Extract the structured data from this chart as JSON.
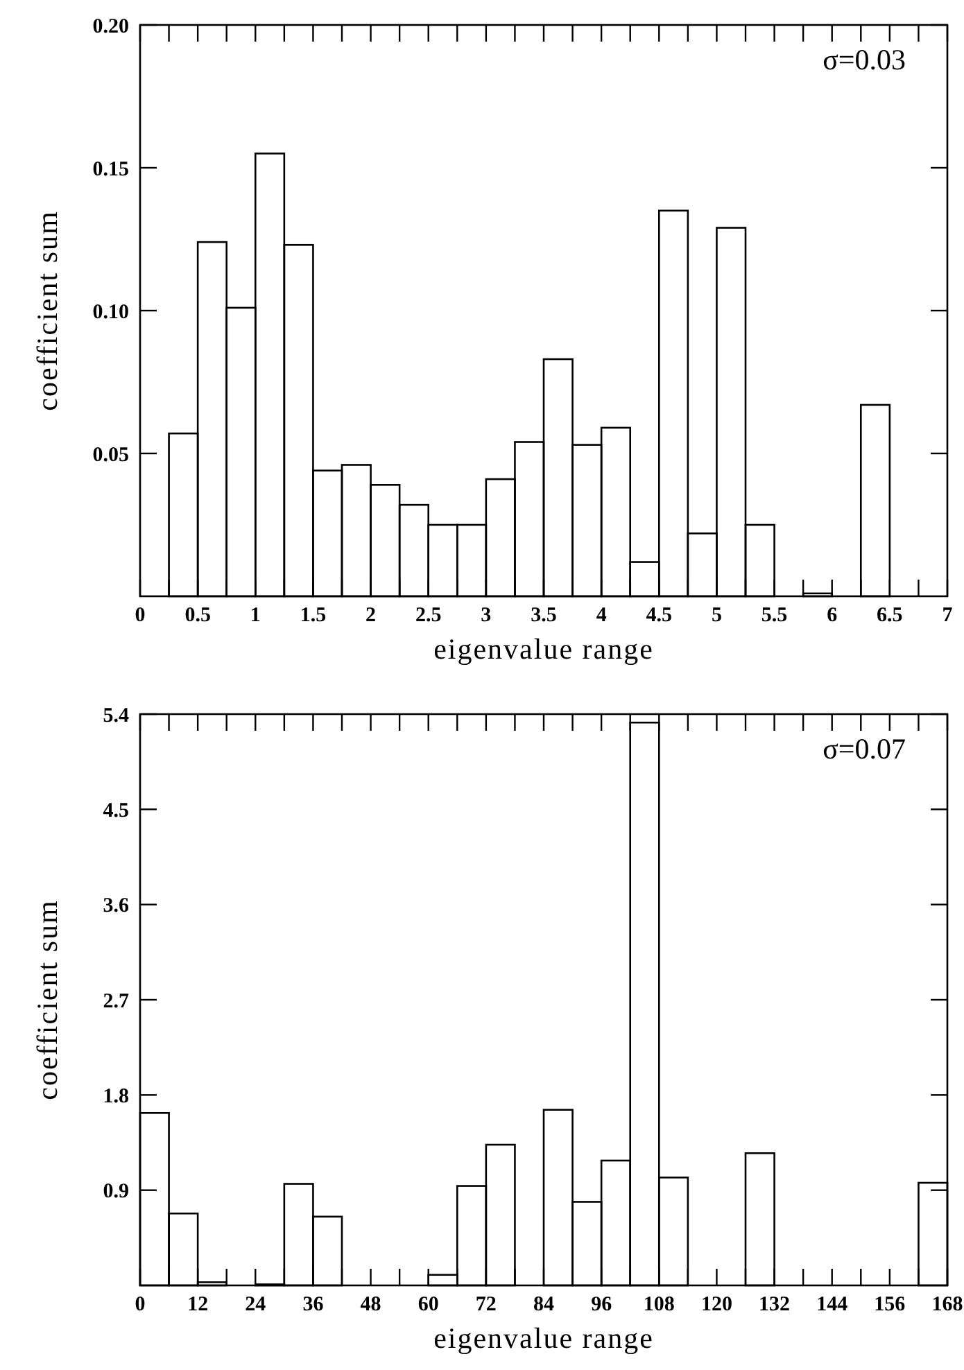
{
  "chart_data": [
    {
      "type": "histogram",
      "xlabel": "eigenvalue range",
      "ylabel": "coefficient sum",
      "annotations": [
        "σ=0.03"
      ],
      "bins": [
        0,
        0.25,
        0.5,
        0.75,
        1,
        1.25,
        1.5,
        1.75,
        2,
        2.25,
        2.5,
        2.75,
        3,
        3.25,
        3.5,
        3.75,
        4,
        4.25,
        4.5,
        4.75,
        5,
        5.25,
        5.5,
        5.75,
        6,
        6.25,
        6.5,
        6.75,
        7
      ],
      "values": [
        0,
        0.057,
        0.124,
        0.101,
        0.155,
        0.123,
        0.044,
        0.046,
        0.039,
        0.032,
        0.025,
        0.025,
        0.041,
        0.054,
        0.083,
        0.053,
        0.059,
        0.012,
        0.135,
        0.022,
        0.129,
        0.025,
        0,
        0.001,
        0,
        0.067,
        0,
        0
      ],
      "color": "#000000",
      "xlim": [
        0,
        7
      ],
      "xticks": [
        0,
        0.5,
        1,
        1.5,
        2,
        2.5,
        3,
        3.5,
        4,
        4.5,
        5,
        5.5,
        6,
        6.5,
        7
      ],
      "ylim": [
        0,
        0.2
      ],
      "yticks": [
        {
          "value": 0.05,
          "label": "0.05"
        },
        {
          "value": 0.1,
          "label": "0.10"
        },
        {
          "value": 0.15,
          "label": "0.15"
        },
        {
          "value": 0.2,
          "label": "0.20"
        }
      ],
      "grid": false
    },
    {
      "type": "histogram",
      "xlabel": "eigenvalue range",
      "ylabel": "coefficient sum",
      "annotations": [
        "σ=0.07"
      ],
      "bins": [
        0,
        6,
        12,
        18,
        24,
        30,
        36,
        42,
        48,
        54,
        60,
        66,
        72,
        78,
        84,
        90,
        96,
        102,
        108,
        114,
        120,
        126,
        132,
        138,
        144,
        150,
        156,
        162,
        168
      ],
      "values": [
        1.63,
        0.68,
        0.03,
        0,
        0.01,
        0.96,
        0.65,
        0,
        0,
        0,
        0.1,
        0.94,
        1.33,
        0,
        1.66,
        0.79,
        1.18,
        5.32,
        1.02,
        0,
        0,
        1.25,
        0,
        0,
        0,
        0,
        0,
        0.97
      ],
      "color": "#000000",
      "xlim": [
        0,
        168
      ],
      "xticks": [
        0,
        12,
        24,
        36,
        48,
        60,
        72,
        84,
        96,
        108,
        120,
        132,
        144,
        156,
        168
      ],
      "ylim": [
        0,
        5.4
      ],
      "yticks": [
        0.9,
        1.8,
        2.7,
        3.6,
        4.5,
        5.4
      ],
      "grid": false
    }
  ]
}
